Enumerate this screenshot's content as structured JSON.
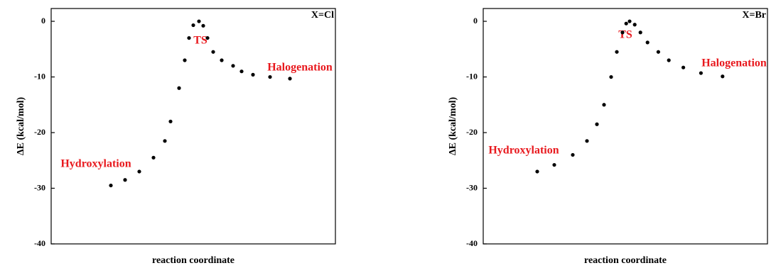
{
  "chart_data": [
    {
      "type": "scatter",
      "title": "X=Cl",
      "x_label": "reaction coordinate",
      "y_label": "ΔE (kcal/mol)",
      "annotations": [
        "TS",
        "Halogenation",
        "Hydroxylation"
      ],
      "xlim": [
        0,
        100
      ],
      "ylim": [
        -40,
        2.3
      ],
      "yticks": [
        0,
        -10,
        -20,
        -30,
        -40
      ],
      "series": [
        {
          "color": "#000000",
          "x": [
            21,
            26,
            31,
            36,
            40,
            42,
            45,
            47,
            48.5,
            50,
            52,
            53.5,
            55,
            57,
            60,
            64,
            67,
            71,
            77,
            84
          ],
          "values": [
            -29.5,
            -28.5,
            -27,
            -24.5,
            -21.5,
            -18,
            -12,
            -7,
            -3,
            -0.7,
            0,
            -0.8,
            -3,
            -5.5,
            -7,
            -8,
            -9,
            -9.6,
            -10,
            -10.3
          ]
        }
      ]
    },
    {
      "type": "scatter",
      "title": "X=Br",
      "x_label": "reaction coordinate",
      "y_label": "ΔE (kcal/mol)",
      "annotations": [
        "TS",
        "Halogenation",
        "Hydroxylation"
      ],
      "xlim": [
        0,
        100
      ],
      "ylim": [
        -40,
        2.3
      ],
      "yticks": [
        0,
        -10,
        -20,
        -30,
        -40
      ],
      "series": [
        {
          "color": "#000000",
          "x": [
            19,
            25,
            31.5,
            36.5,
            40,
            42.5,
            45,
            47,
            49,
            50.3,
            51.5,
            53.3,
            55.3,
            57.8,
            61.6,
            65.3,
            70.4,
            76.6,
            84.2
          ],
          "values": [
            -27,
            -25.8,
            -24,
            -21.5,
            -18.5,
            -15,
            -10,
            -5.5,
            -2,
            -0.4,
            0,
            -0.6,
            -2,
            -3.8,
            -5.5,
            -7,
            -8.3,
            -9.3,
            -9.9
          ]
        }
      ]
    }
  ]
}
